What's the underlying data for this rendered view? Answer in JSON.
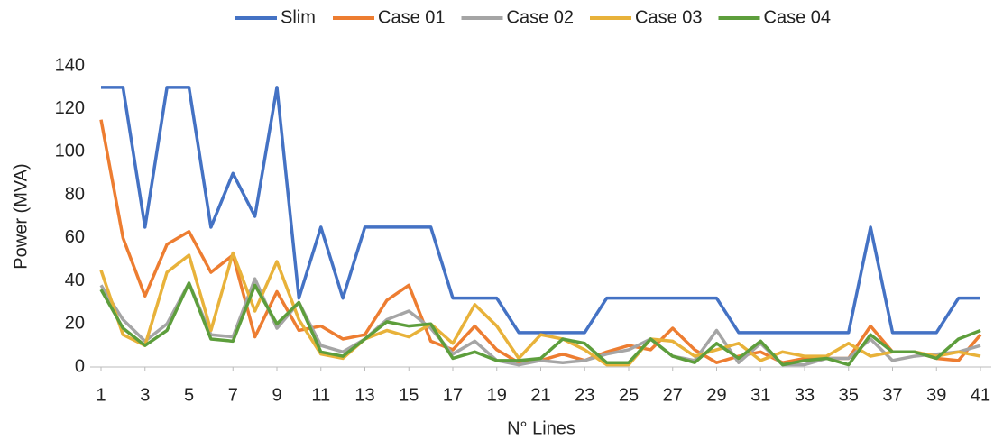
{
  "chart_data": {
    "type": "line",
    "xlabel": "N° Lines",
    "ylabel": "Power (MVA)",
    "x": [
      1,
      2,
      3,
      4,
      5,
      6,
      7,
      8,
      9,
      10,
      11,
      12,
      13,
      14,
      15,
      16,
      17,
      18,
      19,
      20,
      21,
      22,
      23,
      24,
      25,
      26,
      27,
      28,
      29,
      30,
      31,
      32,
      33,
      34,
      35,
      36,
      37,
      38,
      39,
      40,
      41
    ],
    "xlim": [
      1,
      41
    ],
    "xticks": [
      1,
      3,
      5,
      7,
      9,
      11,
      13,
      15,
      17,
      19,
      21,
      23,
      25,
      27,
      29,
      31,
      33,
      35,
      37,
      39,
      41
    ],
    "ylim": [
      0,
      140
    ],
    "yticks": [
      0,
      20,
      40,
      60,
      80,
      100,
      120,
      140
    ],
    "grid": false,
    "legend": "top",
    "series": [
      {
        "name": "Slim",
        "color": "#4472c4",
        "values": [
          130,
          130,
          65,
          130,
          130,
          65,
          90,
          70,
          130,
          32,
          65,
          32,
          65,
          65,
          65,
          65,
          32,
          32,
          32,
          16,
          16,
          16,
          16,
          32,
          32,
          32,
          32,
          32,
          32,
          16,
          16,
          16,
          16,
          16,
          16,
          65,
          16,
          16,
          16,
          32,
          32
        ]
      },
      {
        "name": "Case 01",
        "color": "#ed7d31",
        "values": [
          115,
          60,
          33,
          57,
          63,
          44,
          52,
          14,
          35,
          17,
          19,
          13,
          15,
          31,
          38,
          12,
          8,
          19,
          8,
          2,
          3,
          6,
          3,
          7,
          10,
          8,
          18,
          8,
          2,
          5,
          7,
          2,
          4,
          4,
          4,
          19,
          7,
          7,
          4,
          3,
          15
        ]
      },
      {
        "name": "Case 02",
        "color": "#a5a5a5",
        "values": [
          38,
          22,
          12,
          20,
          39,
          15,
          14,
          41,
          18,
          30,
          10,
          7,
          13,
          22,
          26,
          18,
          6,
          12,
          3,
          1,
          3,
          2,
          3,
          6,
          8,
          13,
          5,
          3,
          17,
          2,
          11,
          1,
          1,
          4,
          4,
          13,
          3,
          5,
          6,
          7,
          10
        ]
      },
      {
        "name": "Case 03",
        "color": "#e8b23a",
        "values": [
          45,
          15,
          10,
          44,
          52,
          17,
          53,
          26,
          49,
          22,
          6,
          4,
          13,
          17,
          14,
          20,
          11,
          29,
          19,
          4,
          15,
          13,
          8,
          1,
          1,
          13,
          12,
          5,
          8,
          11,
          3,
          7,
          5,
          5,
          11,
          5,
          7,
          7,
          5,
          7,
          5
        ]
      },
      {
        "name": "Case 04",
        "color": "#5d9e3c",
        "values": [
          36,
          18,
          10,
          17,
          39,
          13,
          12,
          38,
          20,
          30,
          7,
          5,
          13,
          21,
          19,
          20,
          4,
          7,
          3,
          3,
          4,
          13,
          11,
          2,
          2,
          13,
          5,
          2,
          11,
          4,
          12,
          1,
          3,
          4,
          1,
          15,
          7,
          7,
          4,
          13,
          17
        ]
      }
    ]
  }
}
